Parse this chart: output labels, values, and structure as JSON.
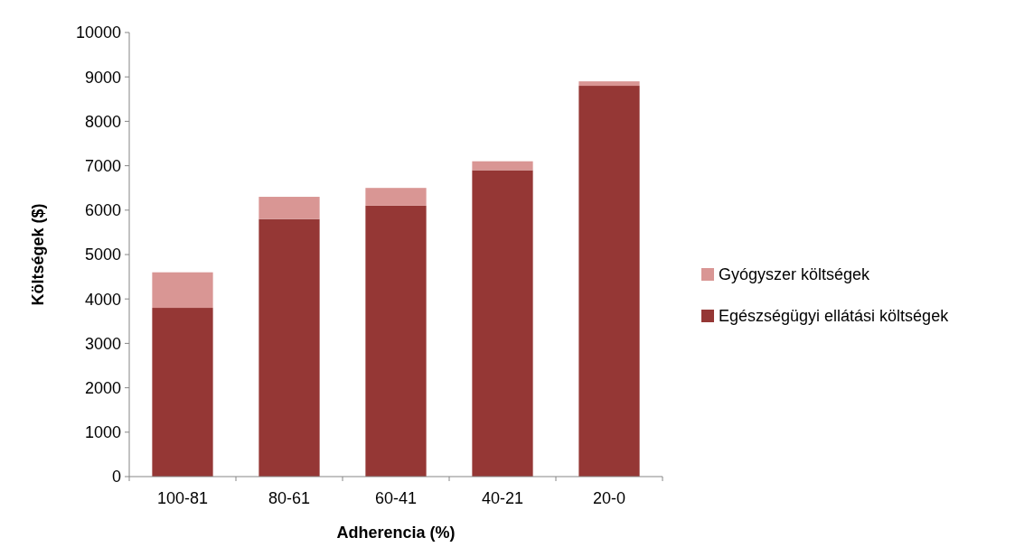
{
  "chart_data": {
    "type": "bar",
    "stacked": true,
    "xlabel": "Adherencia (%)",
    "ylabel": "Költségek ($)",
    "categories": [
      "100-81",
      "80-61",
      "60-41",
      "40-21",
      "20-0"
    ],
    "series": [
      {
        "name": "Egészségügyi ellátási költségek",
        "color": "#953735",
        "values": [
          3800,
          5800,
          6100,
          6900,
          8800
        ]
      },
      {
        "name": "Gyógyszer költségek",
        "color": "#d99694",
        "values": [
          800,
          500,
          400,
          200,
          100
        ]
      }
    ],
    "ylim": [
      0,
      10000
    ],
    "yticks": [
      0,
      1000,
      2000,
      3000,
      4000,
      5000,
      6000,
      7000,
      8000,
      9000,
      10000
    ],
    "grid": false,
    "legend": "right"
  }
}
